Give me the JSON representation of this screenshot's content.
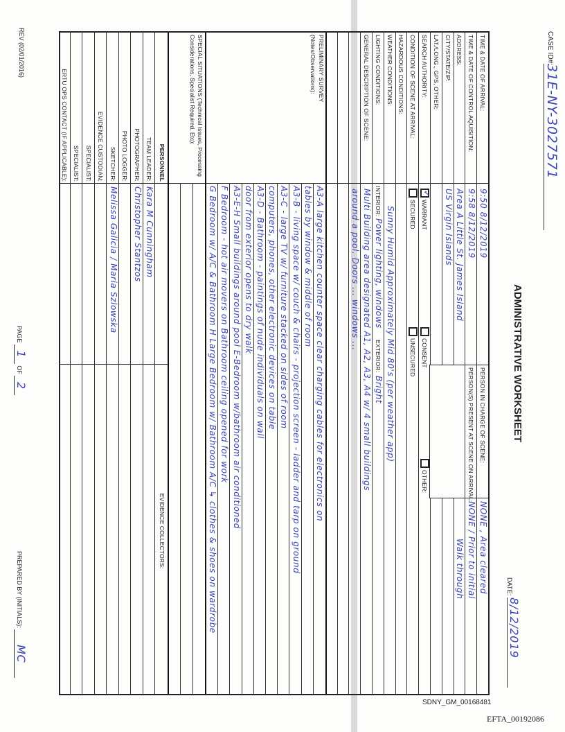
{
  "header": {
    "case_id_label": "CASE ID#:",
    "case_id": "31E-NY-3027571",
    "title": "ADMINISTRATIVE WORKSHEET",
    "date_label": "DATE:",
    "date": "8/12/2019"
  },
  "scene": {
    "arrival_label": "TIME & DATE OF ARRIVAL:",
    "arrival": "9:50  8/12/2019",
    "control_label": "TIME & DATE OF CONTROL AQUISITION:",
    "control": "9:58  8/12/2019",
    "address_label": "ADDRESS:",
    "address": "Area A  Little St. James Island",
    "city_label": "CITY/STATE/ZIP:",
    "city": "US Virgin Islands",
    "latlong_label": "LAT./LONG., GPS, OTHER:",
    "search_label": "SEARCH AUTHORITY:",
    "warrant_label": "WARRANT",
    "warrant_checked": true,
    "consent_label": "CONSENT",
    "other_label": "OTHER:",
    "condition_label": "CONDITION OF SCENE AT ARRIVAL:",
    "secured_label": "SECURED",
    "unsecured_label": "UNSECURED",
    "hazardous_label": "HAZARDOUS CONDITIONS:",
    "weather_label": "WEATHER CONDITIONS:",
    "weather": "Sunny   Humid   Approximately  Mid 80's  (per weather app)",
    "lighting_label": "LIGHTING CONDITIONS:",
    "interior_label": "INTERIOR:",
    "interior": "Power lighting, windows",
    "exterior_label": "EXTERIOR:",
    "exterior": "Bright",
    "general_label": "GENERAL DESCRIPTION OF SCENE:",
    "general_lines": [
      "Multi Building area designated A1, A2, A3, A4  w/ 4 small buildings",
      "around a pool.  Doors ... windows ..."
    ],
    "person_in_charge_label": "PERSON IN CHARGE OF SCENE:",
    "person_in_charge": "NONE ,  Area cleared",
    "persons_present_label": "PERSON(S) PRESENT AT SCENE ON ARRIVAL:",
    "persons_present": "NONE  /  Prior to initial",
    "persons_present_cont": "Walk through"
  },
  "survey": {
    "label": "PRELIMINARY SURVEY",
    "sublabel": "(Notes/Observations):",
    "lines": [
      "A3-A large kitchen   counter space clear   charging cables for electronics on",
      "tables by window                                                  & middle of room",
      "A3-B - living space w/ couch & chairs - projection screen - ladder and tarp on ground",
      "A3-C - large TV w/ furniture stacked on sides of room",
      "computers, phones, other electronic devices on table",
      "A3-D - Bathroom - paintings of nude individuals on wall",
      "door from exterior opens to dry walk",
      "A3-E-H  Small buildings around pool   E-Bedroom w/bathroom  air conditioned",
      "F Bedroom - hot air movers on   Bathroom ceiling opened for work",
      "G Bedroom w/ A/C & Bathroom    H Large Bedroom w/ Bathroom A/C  ↳ clothes & shoes on wardrobe"
    ]
  },
  "special": {
    "label": "SPECIAL SITUATIONS (Technical Issues, Processing Considerations, Specialist Required, Etc):"
  },
  "personnel": {
    "header": "PERSONNEL",
    "collectors_header": "EVIDENCE COLLECTORS:",
    "rows": [
      {
        "label": "TEAM LEADER:",
        "value": "Kara M Cunningham"
      },
      {
        "label": "PHOTOGRAPHER:",
        "value": "Christopher Stantzos"
      },
      {
        "label": "PHOTO LOGGER:",
        "value": ""
      },
      {
        "label": "SKETCHER:",
        "value": "Melissa Galicia / Maria Szlowska"
      },
      {
        "label": "EVIDENCE CUSTODIAN:",
        "value": ""
      },
      {
        "label": "SPECIALIST:",
        "value": ""
      },
      {
        "label": "SPECIALIST:",
        "value": ""
      },
      {
        "label": "ERTU OPS CONTACT (if applicable):",
        "value": ""
      }
    ]
  },
  "footer": {
    "rev": "Rev (02/01/2016)",
    "page_label": "PAGE",
    "page": "1",
    "of_label": "OF",
    "pages": "2",
    "prepared_label": "PREPARED BY (initials):",
    "prepared": "MC"
  },
  "stamps": {
    "bates": "SDNY_GM_00168481",
    "efta": "EFTA_00192086"
  }
}
